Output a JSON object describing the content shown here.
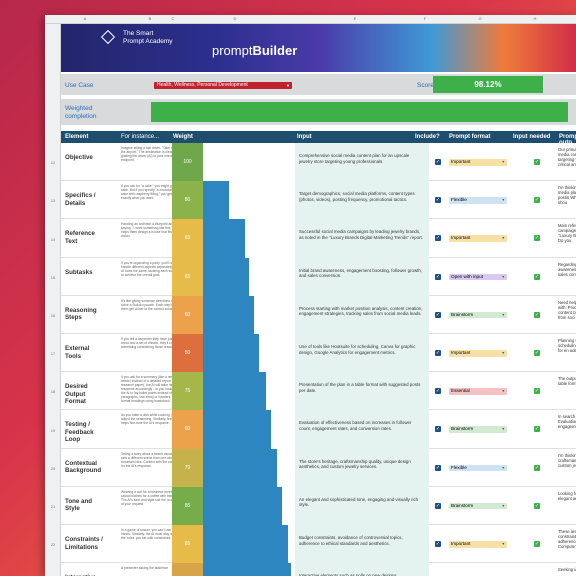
{
  "columns": [
    "A",
    "B",
    "C",
    "D",
    "E",
    "F",
    "G",
    "H"
  ],
  "banner": {
    "org_line1": "The Smart",
    "org_line2": "Prompt Academy",
    "brand_prefix": "prompt",
    "brand_bold": "Builder"
  },
  "use_case": {
    "label": "Use Case",
    "value": "Health, Wellness, Personal Development"
  },
  "score": {
    "label": "Score",
    "value": "98.12%"
  },
  "weighted_completion": {
    "label_line1": "Weighted",
    "label_line2": "completion",
    "fraction": 0.98
  },
  "table_header": {
    "element": "Element",
    "instance": "For instance...",
    "weight": "Weight",
    "input": "Input",
    "include": "Include?",
    "format": "Prompt format",
    "needed": "Input needed",
    "output": "Prompt outp"
  },
  "rows": [
    {
      "num": "12",
      "element": "Objective",
      "instance": "Imagine telling a taxi driver, \"Take me to the airport.\" The destination is clear, guiding the driver (AI) to your intended endpoint.",
      "weight": "100",
      "weight_color": "#6ea84a",
      "bar": 0.0,
      "input": "Comprehensive social media content plan for an upscale jewelry store targeting young professionals.",
      "format": "Important",
      "format_bg": "#f6e0a6",
      "output": "Our primary obj media content p targeting young are critical amo"
    },
    {
      "num": "13",
      "element": "Specifics / Details",
      "instance": "If you ask for \"a cake,\" you might get any cake. But if you specify \"a chocolate cake with raspberry filling,\" you get exactly what you want.",
      "weight": "80",
      "weight_color": "#8cb24a",
      "bar": 0.28,
      "input": "Target demographics, social media platforms, content types (photos, videos), posting frequency, promotional tactics.",
      "format": "Flexible",
      "format_bg": "#cfe2f3",
      "output": "I'm thinking of social media pla videos), postin What else shou"
    },
    {
      "num": "14",
      "element": "Reference Text",
      "instance": "Handing an architect a blueprint and saying, \"I want something like this,\" helps them design a house that fits your vision.",
      "weight": "65",
      "weight_color": "#e6bb4a",
      "bar": 0.46,
      "input": "Successful social media campaigns by leading jewelry brands, as noted in the \"Luxury Brands Digital Marketing Trends\" report.",
      "format": "Important",
      "format_bg": "#f6e0a6",
      "output": "Main reference campaigns by le the \"Luxury Bra report. Do you"
    },
    {
      "num": "15",
      "element": "Subtasks",
      "instance": "If you're organizing a party, you'll need to handle different aspects separately. The AI does the same, tackling each subtask to achieve the overall goal.",
      "weight": "65",
      "weight_color": "#e6bb4a",
      "bar": 0.5,
      "input": "Initial brand awareness, engagement boosting, follower growth, and sales conversion.",
      "format": "Open with input",
      "format_bg": "#d9c9ee",
      "output": "Regarding subt awareness, eng and sales conve"
    },
    {
      "num": "16",
      "element": "Reasoning Steps",
      "instance": "It's like giving someone directions to solve a Sudoku puzzle. Each step helps them get closer to the correct solution.",
      "weight": "60",
      "weight_color": "#eba24a",
      "bar": 0.55,
      "input": "Process starting with market position analysis, content creation, engagement strategies, tracking sales from social media leads.",
      "format": "Brainstorm",
      "format_bg": "#d2ead2",
      "output": "Need help devel with: Process s content creatio sales from soci"
    },
    {
      "num": "17",
      "element": "External Tools",
      "instance": "If you tell a carpenter they have just wood and a set of chisels, they'll craft something considering those resources.",
      "weight": "50",
      "weight_color": "#dd6f3e",
      "bar": 0.61,
      "input": "Use of tools like Hootsuite for scheduling, Canva for graphic design, Google Analytics for engagement metrics.",
      "format": "Important",
      "format_bg": "#f6e0a6",
      "output": "Planning to use for scheduling, Analytics for en adequate?"
    },
    {
      "num": "18",
      "element": "Desired Output Format",
      "instance": "If you ask for a summary (like a news article) instead of a detailed report (like a research paper), the AI will tailor its response accordingly - or you could ask the AI to lay bullet points instead of long paragraphs, use emoji or headers, or format headings using markdown.",
      "weight": "75",
      "weight_color": "#a5b64a",
      "bar": 0.68,
      "input": "Presentation of the plan in a table format with suggested posts per date.",
      "format": "Essential",
      "format_bg": "#f4c2c2",
      "output": "The output forr in a table form"
    },
    {
      "num": "19",
      "element": "Testing / Feedback Loop",
      "instance": "As you bake a dish while cooking, you adjust the seasoning. Similarly, feedback helps fine-tune the AI's response.",
      "weight": "60",
      "weight_color": "#eba24a",
      "bar": 0.74,
      "input": "Evaluation of effectiveness based on increases in follower count, engagement rates, and conversion rates.",
      "format": "Brainstorm",
      "format_bg": "#d2ead2",
      "output": "In search of too Evaluation of e engagement ra"
    },
    {
      "num": "20",
      "element": "Contextual Background",
      "instance": "Telling a story about a beach vacation sets a different scene than one about a mountain hike. Context sets the scene for the AI's response.",
      "weight": "70",
      "weight_color": "#c5b24a",
      "bar": 0.8,
      "input": "The store's heritage, craftsmanship quality, unique design aesthetics, and custom jewelry services.",
      "format": "Flexible",
      "format_bg": "#cfe2f3",
      "output": "I'm thinking of craftsmanship q custom jewelry"
    },
    {
      "num": "21",
      "element": "Tone and Style",
      "instance": "Wearing a suit for a business meeting vs casual clothes for a coffee with friends. The AI's tone and style suit the 'occasion' of your request.",
      "weight": "85",
      "weight_color": "#77ac4a",
      "bar": 0.86,
      "input": "An elegant and sophisticated tone, engaging and visually rich style.",
      "format": "Brainstorm",
      "format_bg": "#d2ead2",
      "output": "Looking for ton elegant and sop"
    },
    {
      "num": "22",
      "element": "Constraints / Limitations",
      "instance": "In a game of soccer, you can't use your hands. Similarly, the AI must stay within the 'rules' you set with constraints.",
      "weight": "65",
      "weight_color": "#e6bb4a",
      "bar": 0.92,
      "input": "Budget constraints, avoidance of controversial topics, adherence to ethical standards and aesthetics.",
      "format": "Important",
      "format_bg": "#f6e0a6",
      "output": "These are the constraints, avo adherence to et Compute?"
    },
    {
      "num": "23",
      "element": "Interactive",
      "instance": "A presenter asking the audience",
      "weight": "",
      "weight_color": "#d7a44a",
      "bar": 0.96,
      "input": "Interactive elements such as polls on new designs,",
      "format": "",
      "format_bg": "#ffffff",
      "output": "Seeking ideas f"
    }
  ]
}
